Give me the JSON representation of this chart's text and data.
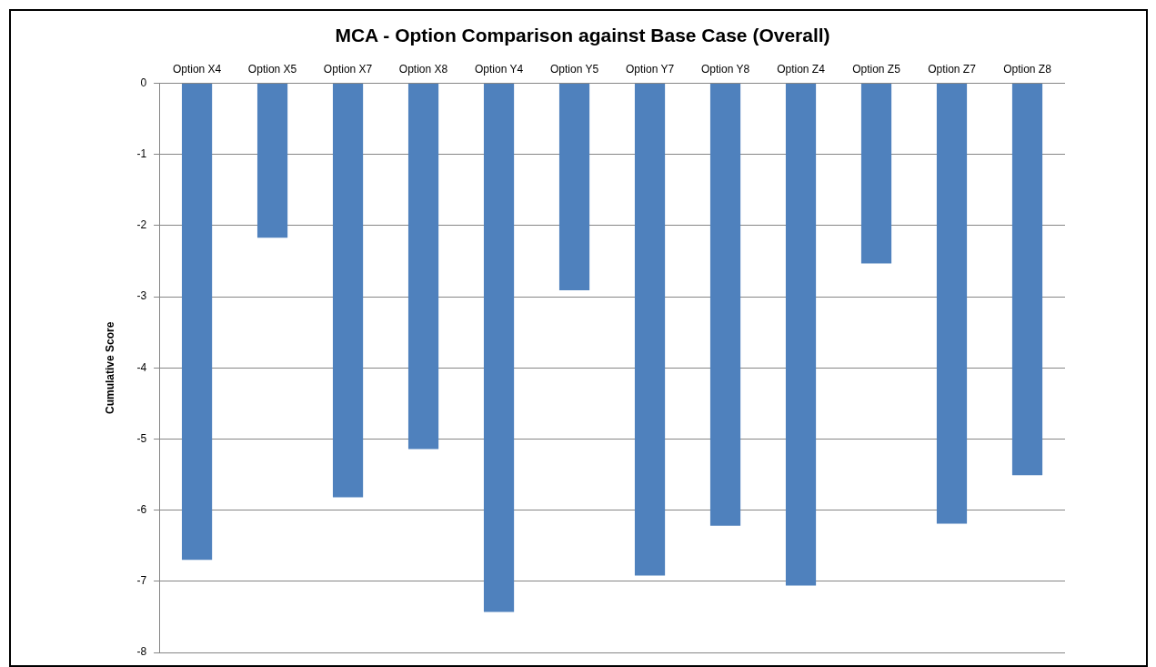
{
  "chart_data": {
    "type": "bar",
    "title": "MCA - Option Comparison against Base Case (Overall)",
    "ylabel": "Cumulative Score",
    "categories": [
      "Option X4",
      "Option X5",
      "Option X7",
      "Option X8",
      "Option Y4",
      "Option Y5",
      "Option Y7",
      "Option Y8",
      "Option Z4",
      "Option Z5",
      "Option Z7",
      "Option Z8"
    ],
    "values": [
      -6.7,
      -2.17,
      -5.82,
      -5.14,
      -7.43,
      -2.91,
      -6.92,
      -6.22,
      -7.06,
      -2.53,
      -6.19,
      -5.51
    ],
    "color": "#4f81bd",
    "ylim": [
      -8,
      0
    ],
    "yticks": [
      -8,
      -7,
      -6,
      -5,
      -4,
      -3,
      -2,
      -1,
      0
    ],
    "grid": "y",
    "legend": false
  }
}
